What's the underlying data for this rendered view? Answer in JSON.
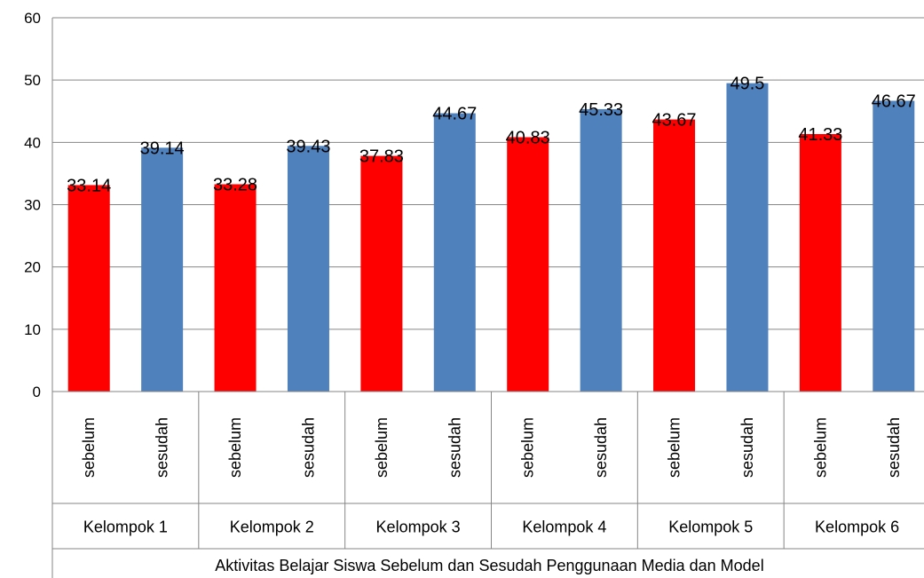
{
  "chart_data": {
    "type": "bar",
    "ylim": [
      0,
      60
    ],
    "yticks": [
      0,
      10,
      20,
      30,
      40,
      50,
      60
    ],
    "grid": true,
    "legend": "none",
    "xlabel": "Aktivitas Belajar Siswa Sebelum dan Sesudah Penggunaan Media dan Model",
    "groups": [
      {
        "label": "Kelompok 1",
        "bars": [
          {
            "label": "sebelum",
            "value": 33.14,
            "display": "33.14"
          },
          {
            "label": "sesudah",
            "value": 39.14,
            "display": "39.14"
          }
        ]
      },
      {
        "label": "Kelompok 2",
        "bars": [
          {
            "label": "sebelum",
            "value": 33.28,
            "display": "33.28"
          },
          {
            "label": "sesudah",
            "value": 39.43,
            "display": "39.43"
          }
        ]
      },
      {
        "label": "Kelompok 3",
        "bars": [
          {
            "label": "sebelum",
            "value": 37.83,
            "display": "37.83"
          },
          {
            "label": "sesudah",
            "value": 44.67,
            "display": "44.67"
          }
        ]
      },
      {
        "label": "Kelompok 4",
        "bars": [
          {
            "label": "sebelum",
            "value": 40.83,
            "display": "40.83"
          },
          {
            "label": "sesudah",
            "value": 45.33,
            "display": "45.33"
          }
        ]
      },
      {
        "label": "Kelompok 5",
        "bars": [
          {
            "label": "sebelum",
            "value": 43.67,
            "display": "43.67"
          },
          {
            "label": "sesudah",
            "value": 49.5,
            "display": "49.5"
          }
        ]
      },
      {
        "label": "Kelompok 6",
        "bars": [
          {
            "label": "sebelum",
            "value": 41.33,
            "display": "41.33"
          },
          {
            "label": "sesudah",
            "value": 46.67,
            "display": "46.67"
          }
        ]
      }
    ],
    "colors": {
      "sebelum": "#ff0000",
      "sesudah": "#4f81bd"
    }
  }
}
